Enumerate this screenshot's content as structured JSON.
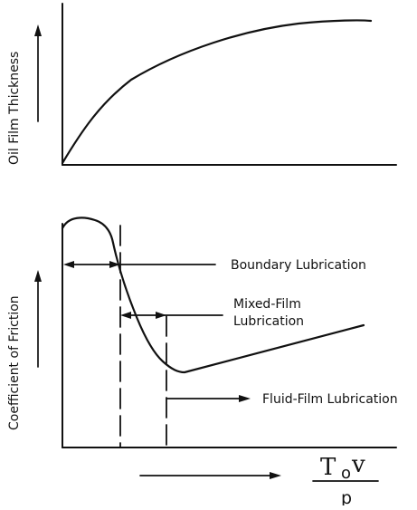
{
  "top_panel": {
    "ylabel": "Oil Film Thickness"
  },
  "bottom_panel": {
    "ylabel": "Coefficient of Friction",
    "regions": {
      "boundary": "Boundary Lubrication",
      "mixed_line1": "Mixed-Film",
      "mixed_line2": "Lubrication",
      "fluid": "Fluid-Film Lubrication"
    }
  },
  "x_axis_formula": {
    "symbol": "T",
    "subscript": "o",
    "variable": "v",
    "denominator": "p"
  }
}
